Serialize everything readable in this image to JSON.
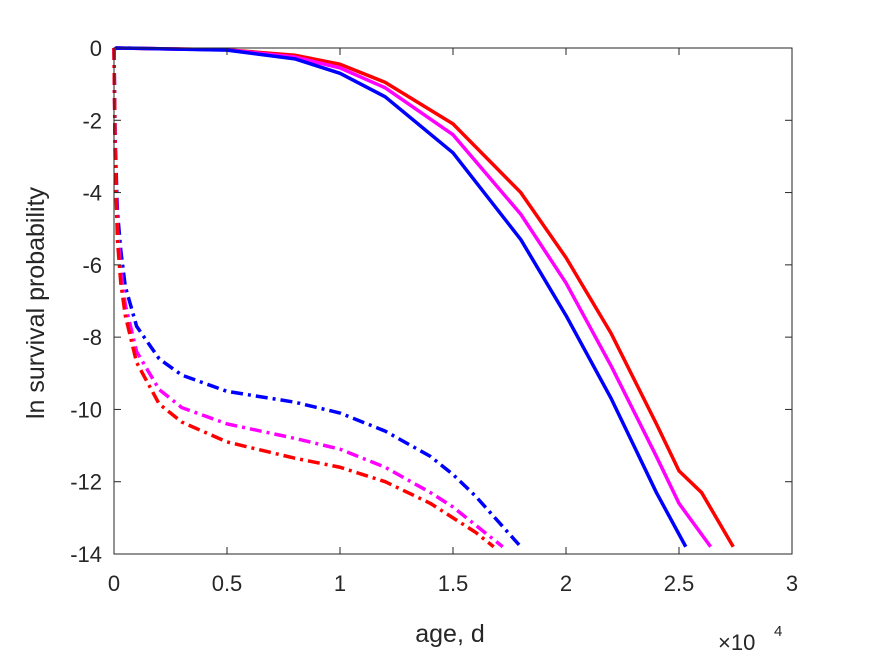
{
  "chart_data": {
    "type": "line",
    "title": "",
    "xlabel": "age, d",
    "ylabel": "ln survival probability",
    "x_exponent_label": "×10",
    "x_exponent_power": "4",
    "xlim": [
      0,
      30000
    ],
    "ylim": [
      -14,
      0
    ],
    "x_ticks": [
      0,
      5000,
      10000,
      15000,
      20000,
      25000,
      30000
    ],
    "x_tick_labels": [
      "0",
      "0.5",
      "1",
      "1.5",
      "2",
      "2.5",
      "3"
    ],
    "y_ticks": [
      0,
      -2,
      -4,
      -6,
      -8,
      -10,
      -12,
      -14
    ],
    "y_tick_labels": [
      "0",
      "-2",
      "-4",
      "-6",
      "-8",
      "-10",
      "-12",
      "-14"
    ],
    "grid": false,
    "legend": "none",
    "series": [
      {
        "color": "#ff0000",
        "style": "solid",
        "x": [
          0,
          100,
          2000,
          5000,
          8000,
          10000,
          12000,
          15000,
          18000,
          20000,
          22000,
          24000,
          25000,
          26000,
          27400
        ],
        "y": [
          -0.05,
          0,
          -0.02,
          -0.05,
          -0.2,
          -0.45,
          -0.95,
          -2.1,
          -4.0,
          -5.8,
          -7.9,
          -10.4,
          -11.7,
          -12.3,
          -13.8
        ]
      },
      {
        "color": "#ff00ff",
        "style": "solid",
        "x": [
          0,
          100,
          2000,
          5000,
          8000,
          10000,
          12000,
          15000,
          18000,
          20000,
          22000,
          24000,
          25000,
          26400
        ],
        "y": [
          -0.05,
          0,
          -0.02,
          -0.05,
          -0.25,
          -0.55,
          -1.1,
          -2.4,
          -4.6,
          -6.5,
          -8.8,
          -11.3,
          -12.6,
          -13.8
        ]
      },
      {
        "color": "#0000ff",
        "style": "solid",
        "x": [
          0,
          100,
          2000,
          5000,
          8000,
          10000,
          12000,
          15000,
          18000,
          20000,
          22000,
          24000,
          25300
        ],
        "y": [
          -0.05,
          0,
          -0.02,
          -0.06,
          -0.3,
          -0.7,
          -1.35,
          -2.9,
          -5.3,
          -7.4,
          -9.7,
          -12.3,
          -13.8
        ]
      },
      {
        "color": "#0000ff",
        "style": "dashdot",
        "x": [
          0,
          50,
          150,
          300,
          500,
          1000,
          2000,
          3000,
          5000,
          8000,
          10000,
          12000,
          14000,
          15000,
          16000,
          17000,
          18000
        ],
        "y": [
          0,
          -2.5,
          -4.5,
          -5.6,
          -6.6,
          -7.7,
          -8.6,
          -9.05,
          -9.5,
          -9.8,
          -10.1,
          -10.6,
          -11.3,
          -11.8,
          -12.4,
          -13.1,
          -13.8
        ]
      },
      {
        "color": "#ff00ff",
        "style": "dashdot",
        "x": [
          0,
          50,
          150,
          300,
          500,
          1000,
          2000,
          3000,
          5000,
          8000,
          10000,
          12000,
          14000,
          15000,
          16000,
          17200
        ],
        "y": [
          0,
          -2.8,
          -5.0,
          -6.2,
          -7.1,
          -8.4,
          -9.45,
          -9.95,
          -10.4,
          -10.8,
          -11.1,
          -11.6,
          -12.3,
          -12.7,
          -13.2,
          -13.8
        ]
      },
      {
        "color": "#ff0000",
        "style": "dashdot",
        "x": [
          0,
          50,
          150,
          300,
          500,
          1000,
          2000,
          3000,
          5000,
          8000,
          10000,
          12000,
          14000,
          15000,
          16000,
          16800
        ],
        "y": [
          0,
          -3.0,
          -5.3,
          -6.5,
          -7.4,
          -8.7,
          -9.85,
          -10.35,
          -10.9,
          -11.35,
          -11.6,
          -12.0,
          -12.6,
          -13.0,
          -13.4,
          -13.8
        ]
      }
    ]
  }
}
